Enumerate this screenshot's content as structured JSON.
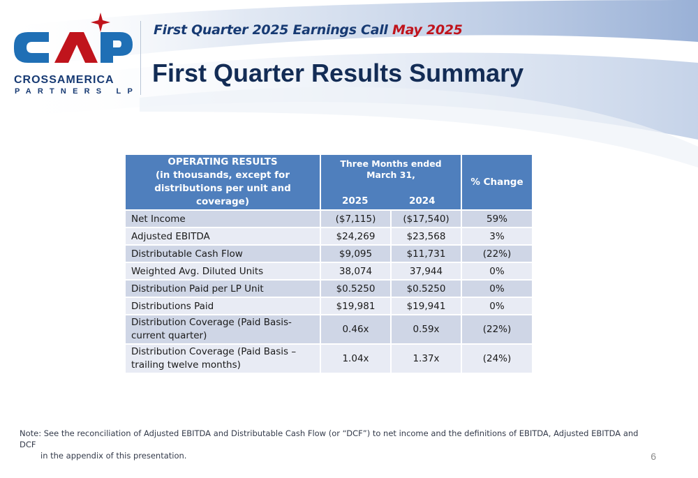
{
  "logo": {
    "name": "CrossAmerica Partners LP logo",
    "mark_text": "CAP",
    "word": "CROSSAMERICA",
    "sub": "PARTNERS LP",
    "colors": {
      "navy": "#173a73",
      "red": "#c0141c",
      "blue": "#1f6fb5"
    }
  },
  "header": {
    "event": "First Quarter 2025 Earnings Call",
    "date": "May 2025",
    "title": "First Quarter Results Summary"
  },
  "table": {
    "header_operating": [
      "OPERATING RESULTS",
      "(in thousands, except for",
      "distributions per unit and coverage)"
    ],
    "header_period": [
      "Three Months ended",
      "March 31,"
    ],
    "year_1": "2025",
    "year_2": "2024",
    "header_change": "% Change",
    "rows": [
      {
        "label": "Net Income",
        "v2025": "($7,115)",
        "v2024": "($17,540)",
        "change": "59%"
      },
      {
        "label": "Adjusted EBITDA",
        "v2025": "$24,269",
        "v2024": "$23,568",
        "change": "3%"
      },
      {
        "label": "Distributable Cash Flow",
        "v2025": "$9,095",
        "v2024": "$11,731",
        "change": "(22%)"
      },
      {
        "label": "Weighted Avg. Diluted Units",
        "v2025": "38,074",
        "v2024": "37,944",
        "change": "0%"
      },
      {
        "label": "Distribution Paid per LP Unit",
        "v2025": "$0.5250",
        "v2024": "$0.5250",
        "change": "0%"
      },
      {
        "label": "Distributions Paid",
        "v2025": "$19,981",
        "v2024": "$19,941",
        "change": "0%"
      },
      {
        "label_lines": [
          "Distribution Coverage (Paid Basis-",
          "current quarter)"
        ],
        "v2025": "0.46x",
        "v2024": "0.59x",
        "change": "(22%)"
      },
      {
        "label_lines": [
          "Distribution Coverage (Paid Basis –",
          "trailing twelve months)"
        ],
        "v2025": "1.04x",
        "v2024": "1.37x",
        "change": "(24%)"
      }
    ]
  },
  "note": {
    "line1": "Note: See the reconciliation of Adjusted EBITDA and Distributable Cash Flow (or “DCF”) to net income and the definitions of EBITDA, Adjusted EBITDA and DCF",
    "line2": "in the appendix of this presentation."
  },
  "page_number": "6",
  "colors": {
    "header_blue": "#4f7fbd",
    "row_dark": "#cfd6e6",
    "row_light": "#e8ebf4",
    "title_navy": "#132c55"
  }
}
